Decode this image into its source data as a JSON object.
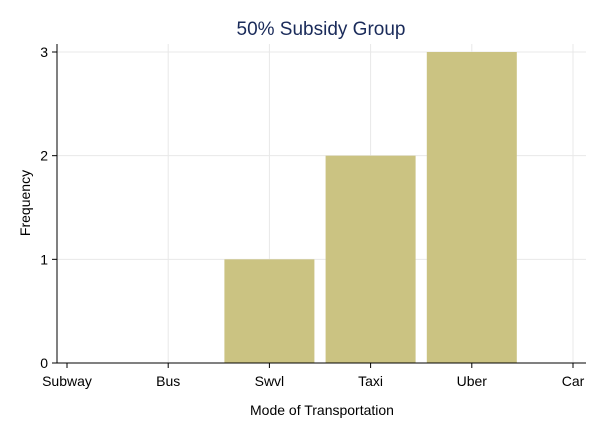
{
  "chart_data": {
    "type": "bar",
    "title": "50% Subsidy Group",
    "xlabel": "Mode of Transportation",
    "ylabel": "Frequency",
    "categories": [
      "Subway",
      "Bus",
      "Swvl",
      "Taxi",
      "Uber",
      "Car"
    ],
    "values": [
      0,
      0,
      1,
      2,
      3,
      0
    ],
    "ylim": [
      0,
      3
    ],
    "yticks": [
      "0",
      "1",
      "2",
      "3"
    ],
    "grid": true,
    "legend": "none",
    "colors": {
      "bar": "#CBC382",
      "title": "#1A2B5A",
      "grid": "#E8E8E8",
      "axis": "#000000"
    }
  }
}
